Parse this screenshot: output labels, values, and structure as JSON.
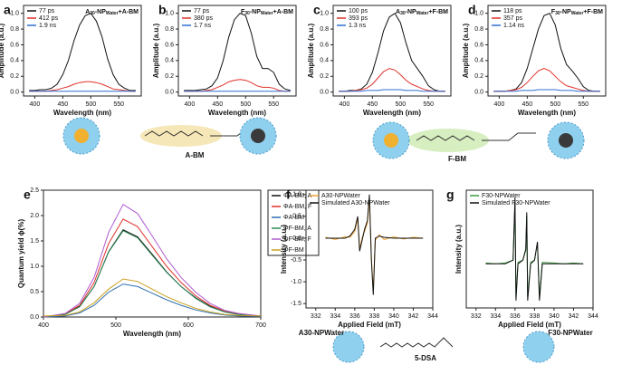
{
  "chart_data": [
    {
      "type": "line",
      "panel": "a",
      "title": [
        "A",
        "30",
        "-NP",
        "Water",
        "+A-BM"
      ],
      "xlabel": "Wavelength (nm)",
      "ylabel": "Amplitude (a.u.)",
      "x": [
        390,
        400,
        410,
        420,
        430,
        440,
        450,
        460,
        470,
        480,
        490,
        500,
        510,
        520,
        530,
        540,
        550,
        560,
        570,
        580
      ],
      "xlim": [
        380,
        590
      ],
      "xticks": [
        400,
        450,
        500,
        550
      ],
      "ylim": [
        -0.05,
        1.1
      ],
      "yticks": [
        {
          "value": 0,
          "label": "0.0"
        },
        0.2,
        0.4,
        0.6,
        0.8,
        {
          "value": 1,
          "label": "1.0"
        }
      ],
      "series": [
        {
          "name": "77 ps",
          "color": "#111111",
          "values": [
            0.02,
            0.02,
            0.03,
            0.03,
            0.05,
            0.1,
            0.22,
            0.4,
            0.65,
            0.85,
            0.97,
            1.0,
            0.9,
            0.7,
            0.42,
            0.22,
            0.1,
            0.05,
            0.02,
            0.02
          ]
        },
        {
          "name": "412 ps",
          "color": "#e0302a",
          "values": [
            0.01,
            0.01,
            0.01,
            0.01,
            0.02,
            0.03,
            0.05,
            0.07,
            0.1,
            0.12,
            0.13,
            0.13,
            0.12,
            0.1,
            0.07,
            0.04,
            0.03,
            0.02,
            0.01,
            0.01
          ]
        },
        {
          "name": "1.9 ns",
          "color": "#2f6fd0",
          "values": [
            0.01,
            0.01,
            0.01,
            0.01,
            0.01,
            0.01,
            0.01,
            0.01,
            0.01,
            0.01,
            0.01,
            0.01,
            0.01,
            0.01,
            0.01,
            0.01,
            0.01,
            0.01,
            0.01,
            0.01
          ]
        }
      ]
    },
    {
      "type": "line",
      "panel": "b",
      "title": [
        "F",
        "30",
        "-NP",
        "Water",
        "+A-BM"
      ],
      "xlabel": "Wavelength (nm)",
      "ylabel": "Amplitude (a.u.)",
      "x": [
        390,
        400,
        410,
        420,
        430,
        440,
        450,
        460,
        470,
        480,
        490,
        500,
        510,
        520,
        530,
        540,
        550,
        560,
        570,
        580
      ],
      "xlim": [
        380,
        590
      ],
      "xticks": [
        400,
        450,
        500,
        550
      ],
      "ylim": [
        -0.05,
        1.1
      ],
      "yticks": [
        {
          "value": 0,
          "label": "0.0"
        },
        0.2,
        0.4,
        0.6,
        0.8,
        {
          "value": 1,
          "label": "1.0"
        }
      ],
      "series": [
        {
          "name": "77 ps",
          "color": "#111111",
          "values": [
            0.02,
            0.02,
            0.02,
            0.03,
            0.04,
            0.08,
            0.18,
            0.4,
            0.7,
            0.92,
            1.0,
            0.97,
            0.75,
            0.45,
            0.3,
            0.3,
            0.25,
            0.1,
            0.04,
            0.02
          ]
        },
        {
          "name": "380 ps",
          "color": "#e0302a",
          "values": [
            0.01,
            0.01,
            0.01,
            0.01,
            0.02,
            0.03,
            0.06,
            0.09,
            0.13,
            0.15,
            0.16,
            0.15,
            0.12,
            0.08,
            0.06,
            0.06,
            0.05,
            0.02,
            0.01,
            0.01
          ]
        },
        {
          "name": "1.7 ns",
          "color": "#2f6fd0",
          "values": [
            0.01,
            0.01,
            0.01,
            0.01,
            0.01,
            0.01,
            0.01,
            0.01,
            0.01,
            0.01,
            0.01,
            0.01,
            0.01,
            0.01,
            0.01,
            0.01,
            0.01,
            0.01,
            0.01,
            0.01
          ]
        }
      ]
    },
    {
      "type": "line",
      "panel": "c",
      "title": [
        "A",
        "30",
        "-NP",
        "Water",
        "+F-BM"
      ],
      "xlabel": "Wavelength (nm)",
      "ylabel": "Amplitude (a.u.)",
      "x": [
        390,
        400,
        410,
        420,
        430,
        440,
        450,
        460,
        470,
        480,
        490,
        500,
        510,
        520,
        530,
        540,
        550,
        560,
        570,
        580
      ],
      "xlim": [
        380,
        590
      ],
      "xticks": [
        400,
        450,
        500,
        550
      ],
      "ylim": [
        -0.05,
        1.1
      ],
      "yticks": [
        {
          "value": 0,
          "label": "0.0"
        },
        0.2,
        0.4,
        0.6,
        0.8,
        {
          "value": 1,
          "label": "1.0"
        }
      ],
      "series": [
        {
          "name": "100 ps",
          "color": "#111111",
          "values": [
            0.01,
            0.01,
            0.02,
            0.02,
            0.04,
            0.1,
            0.25,
            0.5,
            0.78,
            0.95,
            1.0,
            0.88,
            0.62,
            0.4,
            0.3,
            0.2,
            0.08,
            0.03,
            0.01,
            0.01
          ]
        },
        {
          "name": "393 ps",
          "color": "#e0302a",
          "values": [
            0.01,
            0.01,
            0.01,
            0.02,
            0.03,
            0.05,
            0.1,
            0.18,
            0.26,
            0.3,
            0.28,
            0.22,
            0.15,
            0.1,
            0.07,
            0.04,
            0.02,
            0.01,
            0.01,
            0.01
          ]
        },
        {
          "name": "1.3 ns",
          "color": "#2f6fd0",
          "values": [
            0.01,
            0.01,
            0.01,
            0.01,
            0.01,
            0.02,
            0.02,
            0.02,
            0.03,
            0.03,
            0.03,
            0.03,
            0.02,
            0.02,
            0.02,
            0.01,
            0.01,
            0.01,
            0.01,
            0.01
          ]
        }
      ]
    },
    {
      "type": "line",
      "panel": "d",
      "title": [
        "F",
        "30",
        "-NP",
        "Water",
        "+F-BM"
      ],
      "xlabel": "Wavelength (nm)",
      "ylabel": "Amplitude (a.u.)",
      "x": [
        390,
        400,
        410,
        420,
        430,
        440,
        450,
        460,
        470,
        480,
        490,
        500,
        510,
        520,
        530,
        540,
        550,
        560,
        570,
        580
      ],
      "xlim": [
        380,
        590
      ],
      "xticks": [
        400,
        450,
        500,
        550
      ],
      "ylim": [
        -0.05,
        1.1
      ],
      "yticks": [
        {
          "value": 0,
          "label": "0.0"
        },
        0.2,
        0.4,
        0.6,
        0.8,
        {
          "value": 1,
          "label": "1.0"
        }
      ],
      "series": [
        {
          "name": "118 ps",
          "color": "#111111",
          "values": [
            0.01,
            0.01,
            0.01,
            0.02,
            0.04,
            0.12,
            0.3,
            0.55,
            0.8,
            0.97,
            1.0,
            0.85,
            0.55,
            0.35,
            0.27,
            0.18,
            0.07,
            0.02,
            0.01,
            0.01
          ]
        },
        {
          "name": "357 ps",
          "color": "#e0302a",
          "values": [
            0.01,
            0.01,
            0.01,
            0.02,
            0.03,
            0.06,
            0.12,
            0.2,
            0.27,
            0.3,
            0.27,
            0.2,
            0.13,
            0.08,
            0.06,
            0.04,
            0.02,
            0.01,
            0.01,
            0.01
          ]
        },
        {
          "name": "1.14 ns",
          "color": "#2f6fd0",
          "values": [
            0.01,
            0.01,
            0.01,
            0.01,
            0.01,
            0.02,
            0.02,
            0.02,
            0.03,
            0.03,
            0.03,
            0.03,
            0.02,
            0.02,
            0.02,
            0.01,
            0.01,
            0.01,
            0.01,
            0.01
          ]
        }
      ]
    },
    {
      "type": "line",
      "panel": "e",
      "xlabel": "Wavelength (nm)",
      "ylabel": "Quantum yield ϕ(%)",
      "x": [
        400,
        430,
        450,
        470,
        490,
        510,
        530,
        550,
        570,
        590,
        610,
        630,
        650,
        670,
        700
      ],
      "xlim": [
        400,
        700
      ],
      "xticks": [
        400,
        500,
        600,
        700
      ],
      "ylim": [
        0,
        2.5
      ],
      "yticks": [
        {
          "value": 0,
          "label": "0.0"
        },
        0.5,
        {
          "value": 1,
          "label": "1.0"
        },
        1.5,
        {
          "value": 2,
          "label": "2.0"
        },
        2.5
      ],
      "series": [
        {
          "name": "ΦA-BM, A",
          "color": "#111111",
          "values": [
            0,
            0.05,
            0.21,
            0.6,
            1.29,
            1.72,
            1.58,
            1.24,
            0.89,
            0.6,
            0.38,
            0.21,
            0.1,
            0.05,
            0.02
          ]
        },
        {
          "name": "ΦA-BM, F",
          "color": "#e0302a",
          "values": [
            0,
            0.06,
            0.23,
            0.68,
            1.45,
            1.93,
            1.78,
            1.39,
            1.0,
            0.68,
            0.42,
            0.23,
            0.12,
            0.06,
            0.02
          ]
        },
        {
          "name": "ΦA-BM",
          "color": "#2f6fb0",
          "values": [
            0,
            0.02,
            0.08,
            0.23,
            0.49,
            0.65,
            0.6,
            0.47,
            0.34,
            0.23,
            0.14,
            0.08,
            0.04,
            0.02,
            0.01
          ]
        },
        {
          "name": "ΦF-BM, A",
          "color": "#2e8b57",
          "values": [
            0,
            0.05,
            0.2,
            0.6,
            1.28,
            1.7,
            1.56,
            1.22,
            0.88,
            0.6,
            0.37,
            0.2,
            0.1,
            0.05,
            0.02
          ]
        },
        {
          "name": "ΦF-BM, F",
          "color": "#b05ad0",
          "values": [
            0,
            0.07,
            0.27,
            0.78,
            1.67,
            2.22,
            2.04,
            1.6,
            1.15,
            0.78,
            0.49,
            0.27,
            0.13,
            0.07,
            0.02
          ]
        },
        {
          "name": "ΦF-BM",
          "color": "#c8a020",
          "values": [
            0.02,
            0.03,
            0.1,
            0.28,
            0.55,
            0.75,
            0.7,
            0.55,
            0.4,
            0.28,
            0.17,
            0.1,
            0.05,
            0.03,
            0.02
          ]
        }
      ]
    },
    {
      "type": "line",
      "panel": "f",
      "xlabel": "Applied Field (mT)",
      "ylabel": "Intensity (a.u.)",
      "x": [
        333,
        334,
        335,
        335.5,
        336,
        336.3,
        336.5,
        336.8,
        337,
        337.3,
        337.5,
        337.7,
        337.9,
        338.1,
        338.5,
        339,
        340,
        341,
        342,
        343
      ],
      "xlim": [
        331,
        344
      ],
      "xticks": [
        332,
        334,
        336,
        338,
        340,
        342,
        344
      ],
      "ylim": [
        -1.6,
        1.1
      ],
      "yticks": [
        -1.5,
        {
          "value": -1,
          "label": "-1.0"
        },
        -0.5,
        {
          "value": 0,
          "label": "0.0"
        },
        0.5,
        {
          "value": 1,
          "label": "1.0"
        }
      ],
      "series": [
        {
          "name": "A30-NPWater",
          "color": "#e8a030",
          "values": [
            0.02,
            -0.03,
            0.03,
            0.02,
            0.15,
            0.45,
            -0.25,
            0.05,
            0.15,
            0.35,
            0.9,
            -0.45,
            -1.2,
            -0.05,
            0.08,
            -0.03,
            0.03,
            -0.02,
            0.02,
            0
          ]
        },
        {
          "name": "Simulated A30-NPWater",
          "color": "#111111",
          "values": [
            0,
            0,
            0,
            0.05,
            0.2,
            0.5,
            -0.3,
            0,
            0.2,
            0.4,
            1.0,
            -0.5,
            -1.3,
            0,
            0.05,
            0.02,
            0,
            0,
            0,
            0
          ]
        }
      ]
    },
    {
      "type": "line",
      "panel": "g",
      "xlabel": "Applied Field (mT)",
      "ylabel": "Intensity (a.u.)",
      "x": [
        333,
        334,
        335,
        335.8,
        336,
        336.1,
        336.3,
        336.8,
        337.1,
        337.2,
        337.3,
        337.6,
        338,
        338.3,
        338.5,
        338.8,
        340,
        341,
        342,
        343
      ],
      "xlim": [
        331,
        344
      ],
      "xticks": [
        332,
        334,
        336,
        338,
        340,
        342,
        344
      ],
      "ylim": [
        -0.6,
        1.0
      ],
      "series": [
        {
          "name": "F30-NPWater",
          "color": "#3a9a40",
          "values": [
            0.01,
            0,
            0.01,
            0.05,
            0.85,
            -0.45,
            0.02,
            0.05,
            0.18,
            0.65,
            -0.45,
            0.02,
            0.05,
            0.28,
            -0.45,
            0.02,
            0.01,
            0,
            0.01,
            0
          ]
        },
        {
          "name": "Simulated F30-NPWater",
          "color": "#111111",
          "values": [
            0,
            0,
            0,
            0.05,
            0.9,
            -0.5,
            0,
            0.05,
            0.2,
            0.7,
            -0.5,
            0,
            0.05,
            0.3,
            -0.5,
            0,
            0,
            0,
            0,
            0
          ]
        }
      ]
    }
  ],
  "schematic": {
    "probe_a": "A-BM",
    "probe_f": "F-BM",
    "spin_probe": "5-DSA",
    "np_a": "A30-NPWater",
    "np_f": "F30-NPWater"
  }
}
